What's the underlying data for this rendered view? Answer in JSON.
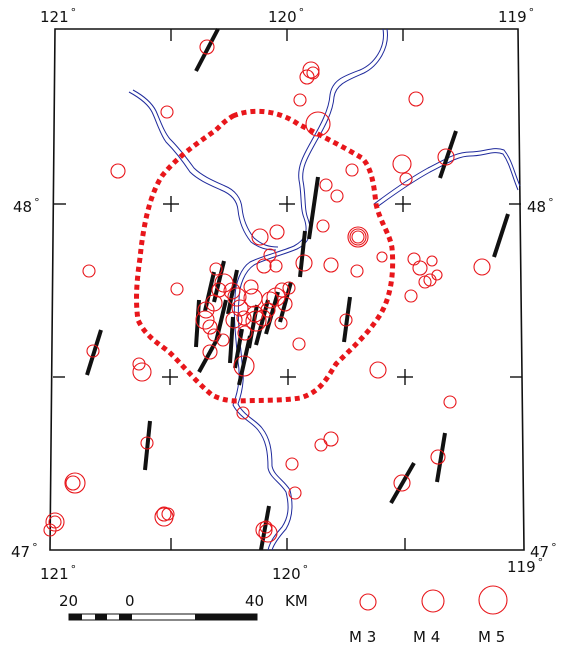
{
  "map": {
    "top_lon_labels": [
      "121",
      "120",
      "119"
    ],
    "bottom_lon_labels": [
      "121",
      "120",
      "119"
    ],
    "lat_labels_left": [
      "48",
      "47"
    ],
    "lat_labels_right": [
      "48",
      "47"
    ],
    "degree_symbol": "°",
    "colors": {
      "quake": "#e8161b",
      "zone": "#e8161b",
      "river": "#1f2a9c",
      "stress": "#111111",
      "frame": "#111111"
    },
    "zone_style": "dotted",
    "quake_symbol": "open-circle",
    "stress_symbol": "thick-bar"
  },
  "scale_bar": {
    "labels": [
      "20",
      "0",
      "40"
    ],
    "unit": "KM"
  },
  "legend": {
    "items": [
      {
        "label": "M 3"
      },
      {
        "label": "M 4"
      },
      {
        "label": "M 5"
      }
    ]
  }
}
